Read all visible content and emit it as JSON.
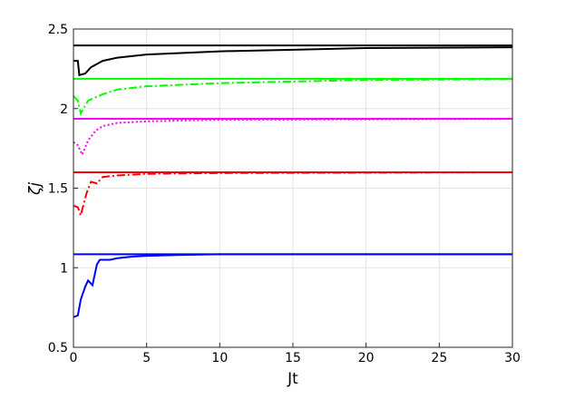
{
  "chart_data": {
    "type": "line",
    "x_label": "Jt",
    "y_label": "ζj",
    "xlim": [
      0,
      30
    ],
    "xticks": [
      0,
      5,
      10,
      15,
      20,
      25,
      30
    ],
    "ylim": [
      0.5,
      2.5
    ],
    "yticks": [
      0.5,
      1,
      1.5,
      2,
      2.5
    ],
    "grid": true,
    "series": [
      {
        "color": "#000000",
        "dash": "solid",
        "x": [
          0,
          30
        ],
        "values": [
          2.397,
          2.397
        ]
      },
      {
        "color": "#000000",
        "dash": "solid",
        "x": [
          0,
          0.3,
          0.4,
          0.8,
          1.2,
          2,
          3,
          5,
          10,
          15,
          20,
          30
        ],
        "values": [
          2.3,
          2.3,
          2.21,
          2.22,
          2.26,
          2.3,
          2.32,
          2.34,
          2.36,
          2.37,
          2.38,
          2.385
        ]
      },
      {
        "color": "#00ff00",
        "dash": "solid",
        "x": [
          0,
          30
        ],
        "values": [
          2.187,
          2.187
        ]
      },
      {
        "color": "#00ff00",
        "dash": "dashdot",
        "x": [
          0,
          0.3,
          0.5,
          1,
          2,
          3,
          5,
          10,
          20,
          30
        ],
        "values": [
          2.08,
          2.05,
          1.97,
          2.05,
          2.09,
          2.12,
          2.14,
          2.16,
          2.18,
          2.185
        ]
      },
      {
        "color": "#ff00ff",
        "dash": "solid",
        "x": [
          0,
          30
        ],
        "values": [
          1.936,
          1.936
        ]
      },
      {
        "color": "#ff00ff",
        "dash": "dotted",
        "x": [
          0,
          0.3,
          0.6,
          1,
          1.5,
          2,
          3,
          5,
          10,
          30
        ],
        "values": [
          1.79,
          1.77,
          1.71,
          1.8,
          1.86,
          1.89,
          1.91,
          1.92,
          1.93,
          1.935
        ]
      },
      {
        "color": "#ff0000",
        "dash": "solid",
        "x": [
          0,
          30
        ],
        "values": [
          1.6,
          1.6
        ]
      },
      {
        "color": "#ff0000",
        "dash": "dashdot",
        "x": [
          0,
          0.3,
          0.5,
          0.9,
          1.2,
          1.6,
          2,
          3,
          5,
          10,
          30
        ],
        "values": [
          1.39,
          1.38,
          1.33,
          1.47,
          1.54,
          1.53,
          1.57,
          1.58,
          1.59,
          1.595,
          1.6
        ]
      },
      {
        "color": "#0000ff",
        "dash": "solid",
        "x": [
          0,
          30
        ],
        "values": [
          1.085,
          1.085
        ]
      },
      {
        "color": "#0000ff",
        "dash": "solid",
        "x": [
          0,
          0.3,
          0.5,
          0.8,
          1,
          1.3,
          1.6,
          1.8,
          2.5,
          3,
          4,
          5,
          7,
          10,
          30
        ],
        "values": [
          0.69,
          0.7,
          0.8,
          0.88,
          0.92,
          0.89,
          1.02,
          1.05,
          1.05,
          1.06,
          1.07,
          1.075,
          1.08,
          1.085,
          1.085
        ]
      }
    ]
  }
}
